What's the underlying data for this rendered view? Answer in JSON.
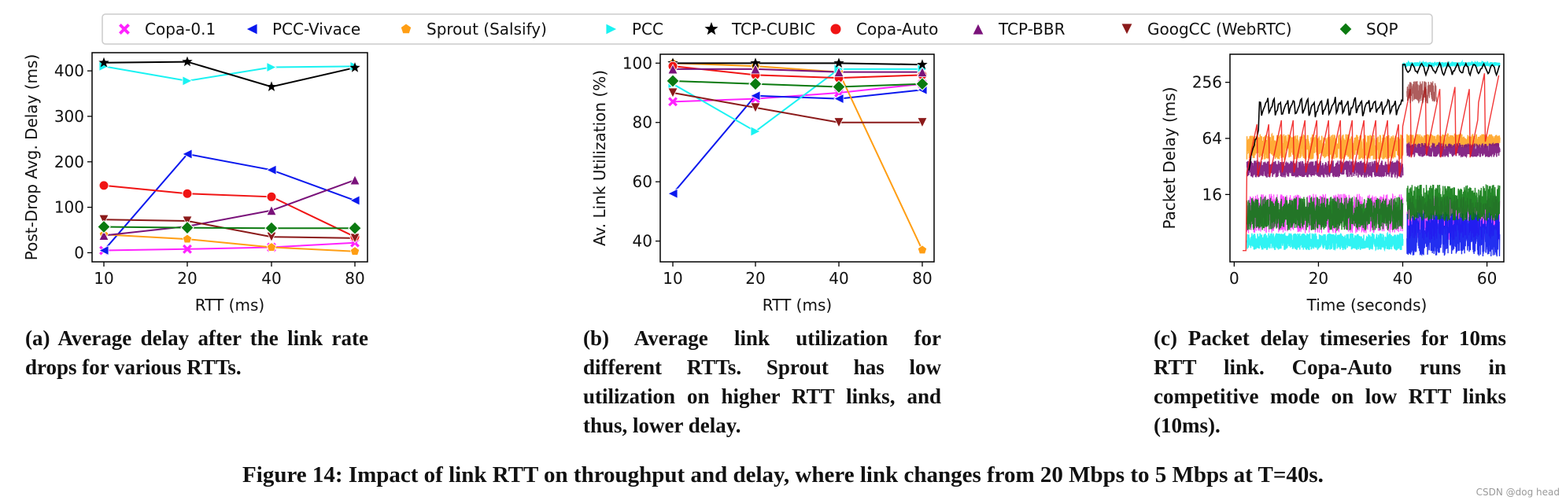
{
  "legend": [
    {
      "name": "Copa-0.1",
      "color": "#ff22ff",
      "marker": "x"
    },
    {
      "name": "PCC-Vivace",
      "color": "#0a18ee",
      "marker": "tri-left"
    },
    {
      "name": "Sprout (Salsify)",
      "color": "#ff9e14",
      "marker": "pentagon"
    },
    {
      "name": "PCC",
      "color": "#1af2f2",
      "marker": "tri-right"
    },
    {
      "name": "TCP-CUBIC",
      "color": "#000000",
      "marker": "star"
    },
    {
      "name": "Copa-Auto",
      "color": "#f01414",
      "marker": "circle"
    },
    {
      "name": "TCP-BBR",
      "color": "#7a127a",
      "marker": "tri-up"
    },
    {
      "name": "GoogCC (WebRTC)",
      "color": "#8b1a1a",
      "marker": "tri-down"
    },
    {
      "name": "SQP",
      "color": "#0b7a10",
      "marker": "diamond"
    }
  ],
  "chart_data": [
    {
      "type": "line",
      "panel": "a",
      "xlabel": "RTT (ms)",
      "ylabel": "Post-Drop Avg. Delay (ms)",
      "categories": [
        "10",
        "20",
        "40",
        "80"
      ],
      "yticks": [
        0,
        100,
        200,
        300,
        400
      ],
      "ylim": [
        -20,
        440
      ],
      "series": [
        {
          "name": "Copa-0.1",
          "values": [
            5,
            8,
            12,
            22
          ]
        },
        {
          "name": "PCC-Vivace",
          "values": [
            5,
            217,
            182,
            115
          ]
        },
        {
          "name": "Sprout (Salsify)",
          "values": [
            40,
            30,
            12,
            3
          ]
        },
        {
          "name": "PCC",
          "values": [
            410,
            378,
            408,
            410
          ]
        },
        {
          "name": "TCP-CUBIC",
          "values": [
            418,
            420,
            365,
            407
          ]
        },
        {
          "name": "Copa-Auto",
          "values": [
            148,
            130,
            123,
            35
          ]
        },
        {
          "name": "TCP-BBR",
          "values": [
            38,
            58,
            93,
            160
          ]
        },
        {
          "name": "GoogCC (WebRTC)",
          "values": [
            73,
            70,
            35,
            32
          ]
        },
        {
          "name": "SQP",
          "values": [
            57,
            55,
            54,
            54
          ]
        }
      ]
    },
    {
      "type": "line",
      "panel": "b",
      "xlabel": "RTT (ms)",
      "ylabel": "Av. Link Utilization (%)",
      "categories": [
        "10",
        "20",
        "40",
        "80"
      ],
      "yticks": [
        40,
        60,
        80,
        100
      ],
      "ylim": [
        33,
        103
      ],
      "series": [
        {
          "name": "Copa-0.1",
          "values": [
            87,
            88,
            90,
            93
          ]
        },
        {
          "name": "PCC-Vivace",
          "values": [
            56,
            89,
            88,
            91
          ]
        },
        {
          "name": "Sprout (Salsify)",
          "values": [
            100,
            99,
            97,
            37
          ]
        },
        {
          "name": "PCC",
          "values": [
            93,
            77,
            98,
            98
          ]
        },
        {
          "name": "TCP-CUBIC",
          "values": [
            100,
            100,
            100,
            99.5
          ]
        },
        {
          "name": "Copa-Auto",
          "values": [
            99,
            96,
            95,
            96
          ]
        },
        {
          "name": "TCP-BBR",
          "values": [
            98,
            98,
            97,
            97
          ]
        },
        {
          "name": "GoogCC (WebRTC)",
          "values": [
            90,
            85,
            80,
            80
          ]
        },
        {
          "name": "SQP",
          "values": [
            94,
            93,
            92,
            93
          ]
        }
      ]
    },
    {
      "type": "line",
      "panel": "c",
      "xlabel": "Time (seconds)",
      "ylabel": "Packet Delay (ms)",
      "xticks": [
        0,
        20,
        40,
        60
      ],
      "xlim": [
        -1,
        64
      ],
      "yticks": [
        16,
        64,
        256
      ],
      "ylim_log2": [
        1.6,
        9.0
      ],
      "series_note": "dense per-packet timeseries, 10ms RTT, link drops at T=40s"
    }
  ],
  "captions": {
    "a_label": "(a)",
    "a_text": "Average delay after the link rate drops for various RTTs.",
    "b_label": "(b)",
    "b_text": "Average link utilization for different RTTs. Sprout has low utilization on higher RTT links, and thus, lower delay.",
    "c_label": "(c)",
    "c_text": "Packet delay timeseries for 10ms RTT link. Copa-Auto runs in competitive mode on low RTT links (10ms)."
  },
  "figure_title": "Figure 14: Impact of link RTT on throughput and delay, where link changes from 20 Mbps to 5 Mbps at T=40s.",
  "watermark": "CSDN @dog head"
}
